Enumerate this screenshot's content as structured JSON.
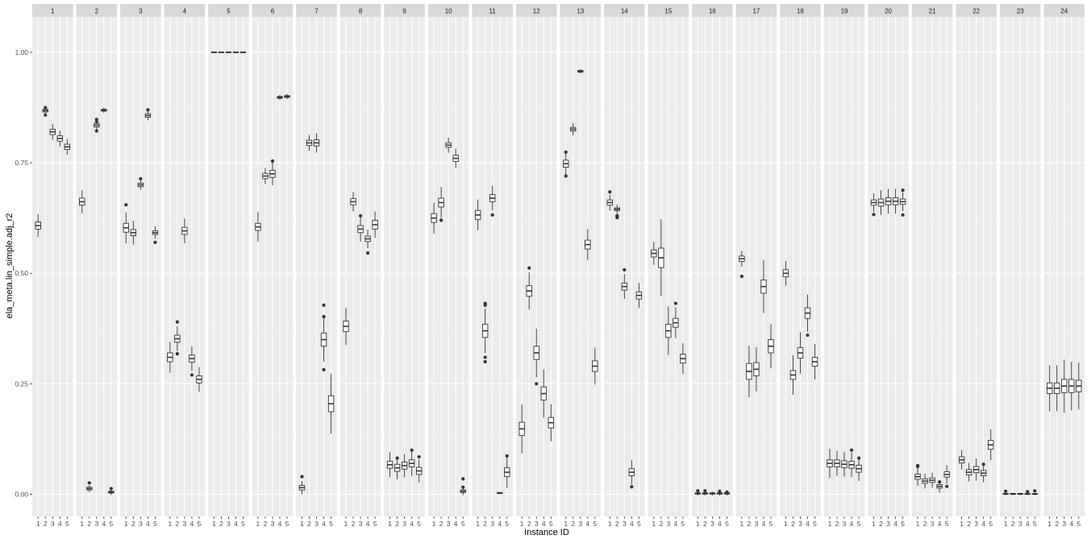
{
  "chart_data": {
    "type": "boxplot",
    "xlabel": "Instance ID",
    "ylabel": "ela_meta.lin_simple.adj_r2",
    "ylim": [
      -0.05,
      1.08
    ],
    "y_ticks": [
      0.0,
      0.25,
      0.5,
      0.75,
      1.0
    ],
    "y_tick_labels": [
      "0.00",
      "0.25",
      "0.50",
      "0.75",
      "1.00"
    ],
    "x_categories": [
      "1",
      "2",
      "3",
      "4",
      "5"
    ],
    "grid": true,
    "colors": {
      "panel_bg": "#ebebeb",
      "strip_bg": "#d9d9d9",
      "grid_major": "#ffffff",
      "box_fill": "#ffffff",
      "box_line": "#333333",
      "outlier": "#333333"
    },
    "facets": [
      {
        "label": "1",
        "boxes": [
          [
            0.608,
            0.008,
            0.018,
            []
          ],
          [
            0.868,
            0.003,
            0.005,
            [
              0.875,
              0.858
            ]
          ],
          [
            0.82,
            0.006,
            0.012,
            []
          ],
          [
            0.805,
            0.006,
            0.012,
            []
          ],
          [
            0.786,
            0.006,
            0.012,
            []
          ]
        ]
      },
      {
        "label": "2",
        "boxes": [
          [
            0.662,
            0.008,
            0.018,
            []
          ],
          [
            0.013,
            0.003,
            0.005,
            [
              0.026
            ]
          ],
          [
            0.835,
            0.004,
            0.007,
            [
              0.848,
              0.843,
              0.822
            ]
          ],
          [
            0.869,
            0.002,
            0.004,
            []
          ],
          [
            0.005,
            0.002,
            0.004,
            [
              0.013
            ]
          ]
        ]
      },
      {
        "label": "3",
        "boxes": [
          [
            0.603,
            0.01,
            0.025,
            [
              0.655
            ]
          ],
          [
            0.592,
            0.007,
            0.02,
            []
          ],
          [
            0.7,
            0.004,
            0.007,
            [
              0.714
            ]
          ],
          [
            0.857,
            0.004,
            0.007,
            [
              0.87
            ]
          ],
          [
            0.592,
            0.004,
            0.01,
            [
              0.57
            ]
          ]
        ]
      },
      {
        "label": "4",
        "boxes": [
          [
            0.31,
            0.01,
            0.025,
            []
          ],
          [
            0.352,
            0.008,
            0.02,
            [
              0.39,
              0.318
            ]
          ],
          [
            0.596,
            0.008,
            0.02,
            []
          ],
          [
            0.307,
            0.008,
            0.02,
            [
              0.27
            ]
          ],
          [
            0.26,
            0.008,
            0.02,
            []
          ]
        ]
      },
      {
        "label": "5",
        "boxes": [
          [
            1.0,
            0.0007,
            0.001,
            []
          ],
          [
            1.0,
            0.0007,
            0.001,
            []
          ],
          [
            1.0,
            0.0007,
            0.001,
            []
          ],
          [
            1.0,
            0.0007,
            0.001,
            []
          ],
          [
            1.0,
            0.0007,
            0.001,
            []
          ]
        ]
      },
      {
        "label": "6",
        "boxes": [
          [
            0.605,
            0.008,
            0.025,
            []
          ],
          [
            0.72,
            0.006,
            0.012,
            []
          ],
          [
            0.725,
            0.008,
            0.018,
            [
              0.754
            ]
          ],
          [
            0.898,
            0.002,
            0.004,
            []
          ],
          [
            0.9,
            0.002,
            0.004,
            []
          ]
        ]
      },
      {
        "label": "7",
        "boxes": [
          [
            0.015,
            0.005,
            0.01,
            [
              0.04
            ]
          ],
          [
            0.795,
            0.006,
            0.012,
            []
          ],
          [
            0.795,
            0.007,
            0.015,
            []
          ],
          [
            0.35,
            0.015,
            0.035,
            [
              0.428,
              0.402,
              0.282
            ]
          ],
          [
            0.205,
            0.018,
            0.05,
            []
          ]
        ]
      },
      {
        "label": "8",
        "boxes": [
          [
            0.38,
            0.012,
            0.03,
            []
          ],
          [
            0.662,
            0.007,
            0.015,
            []
          ],
          [
            0.6,
            0.008,
            0.02,
            [
              0.63
            ]
          ],
          [
            0.578,
            0.006,
            0.015,
            [
              0.546
            ]
          ],
          [
            0.61,
            0.01,
            0.02,
            []
          ]
        ]
      },
      {
        "label": "9",
        "boxes": [
          [
            0.067,
            0.008,
            0.02,
            []
          ],
          [
            0.06,
            0.008,
            0.018,
            [
              0.082
            ]
          ],
          [
            0.065,
            0.008,
            0.018,
            []
          ],
          [
            0.07,
            0.008,
            0.02,
            [
              0.1
            ]
          ],
          [
            0.053,
            0.008,
            0.018,
            [
              0.085
            ]
          ]
        ]
      },
      {
        "label": "10",
        "boxes": [
          [
            0.625,
            0.01,
            0.025,
            []
          ],
          [
            0.66,
            0.01,
            0.025,
            [
              0.62
            ]
          ],
          [
            0.79,
            0.005,
            0.012,
            []
          ],
          [
            0.76,
            0.007,
            0.015,
            []
          ],
          [
            0.007,
            0.003,
            0.006,
            [
              0.035,
              0.016
            ]
          ]
        ]
      },
      {
        "label": "11",
        "boxes": [
          [
            0.632,
            0.01,
            0.025,
            []
          ],
          [
            0.37,
            0.015,
            0.035,
            [
              0.432,
              0.428,
              0.31,
              0.3
            ]
          ],
          [
            0.67,
            0.008,
            0.02,
            [
              0.632
            ]
          ],
          [
            0.003,
            0.001,
            0.002,
            []
          ],
          [
            0.05,
            0.01,
            0.025,
            [
              0.087
            ]
          ]
        ]
      },
      {
        "label": "12",
        "boxes": [
          [
            0.148,
            0.015,
            0.04,
            []
          ],
          [
            0.46,
            0.012,
            0.03,
            [
              0.512
            ]
          ],
          [
            0.32,
            0.015,
            0.04,
            [
              0.25
            ]
          ],
          [
            0.228,
            0.015,
            0.04,
            []
          ],
          [
            0.162,
            0.012,
            0.03,
            []
          ]
        ]
      },
      {
        "label": "13",
        "boxes": [
          [
            0.748,
            0.008,
            0.02,
            [
              0.774,
              0.72
            ]
          ],
          [
            0.826,
            0.004,
            0.01,
            []
          ],
          [
            0.957,
            0.002,
            0.003,
            []
          ],
          [
            0.565,
            0.01,
            0.025,
            []
          ],
          [
            0.29,
            0.012,
            0.03,
            []
          ]
        ]
      },
      {
        "label": "14",
        "boxes": [
          [
            0.66,
            0.006,
            0.012,
            [
              0.684
            ]
          ],
          [
            0.645,
            0.003,
            0.008,
            [
              0.63,
              0.628,
              0.626
            ]
          ],
          [
            0.47,
            0.008,
            0.02,
            [
              0.508
            ]
          ],
          [
            0.05,
            0.008,
            0.02,
            [
              0.017
            ]
          ],
          [
            0.45,
            0.008,
            0.02,
            []
          ]
        ]
      },
      {
        "label": "15",
        "boxes": [
          [
            0.545,
            0.008,
            0.018,
            []
          ],
          [
            0.535,
            0.022,
            0.065,
            []
          ],
          [
            0.37,
            0.015,
            0.04,
            []
          ],
          [
            0.388,
            0.01,
            0.025,
            [
              0.432
            ]
          ],
          [
            0.307,
            0.01,
            0.025,
            []
          ]
        ]
      },
      {
        "label": "16",
        "boxes": [
          [
            0.002,
            0.0015,
            0.003,
            [
              0.008
            ]
          ],
          [
            0.002,
            0.0015,
            0.003,
            [
              0.008
            ]
          ],
          [
            0.002,
            0.0015,
            0.003,
            []
          ],
          [
            0.002,
            0.0015,
            0.003,
            [
              0.007
            ]
          ],
          [
            0.002,
            0.0015,
            0.003,
            [
              0.005
            ]
          ]
        ]
      },
      {
        "label": "17",
        "boxes": [
          [
            0.533,
            0.006,
            0.012,
            [
              0.493
            ]
          ],
          [
            0.278,
            0.018,
            0.04,
            []
          ],
          [
            0.283,
            0.015,
            0.035,
            []
          ],
          [
            0.47,
            0.015,
            0.045,
            []
          ],
          [
            0.335,
            0.015,
            0.035,
            []
          ]
        ]
      },
      {
        "label": "18",
        "boxes": [
          [
            0.5,
            0.008,
            0.02,
            []
          ],
          [
            0.27,
            0.01,
            0.035,
            []
          ],
          [
            0.32,
            0.012,
            0.035,
            []
          ],
          [
            0.41,
            0.012,
            0.03,
            [
              0.36
            ]
          ],
          [
            0.3,
            0.01,
            0.03,
            []
          ]
        ]
      },
      {
        "label": "19",
        "boxes": [
          [
            0.07,
            0.008,
            0.025,
            []
          ],
          [
            0.07,
            0.008,
            0.02,
            []
          ],
          [
            0.068,
            0.008,
            0.02,
            []
          ],
          [
            0.067,
            0.008,
            0.02,
            [
              0.1
            ]
          ],
          [
            0.058,
            0.008,
            0.02,
            [
              0.082
            ]
          ]
        ]
      },
      {
        "label": "20",
        "boxes": [
          [
            0.66,
            0.006,
            0.015,
            [
              0.633
            ]
          ],
          [
            0.66,
            0.008,
            0.02,
            []
          ],
          [
            0.663,
            0.008,
            0.02,
            []
          ],
          [
            0.663,
            0.008,
            0.02,
            []
          ],
          [
            0.662,
            0.006,
            0.015,
            [
              0.688,
              0.632
            ]
          ]
        ]
      },
      {
        "label": "21",
        "boxes": [
          [
            0.04,
            0.006,
            0.015,
            [
              0.065,
              0.063
            ]
          ],
          [
            0.03,
            0.005,
            0.012,
            []
          ],
          [
            0.032,
            0.005,
            0.012,
            []
          ],
          [
            0.018,
            0.004,
            0.01,
            [
              0.028
            ]
          ],
          [
            0.045,
            0.006,
            0.015,
            [
              0.018
            ]
          ]
        ]
      },
      {
        "label": "22",
        "boxes": [
          [
            0.078,
            0.007,
            0.015,
            []
          ],
          [
            0.05,
            0.006,
            0.015,
            []
          ],
          [
            0.056,
            0.007,
            0.018,
            []
          ],
          [
            0.048,
            0.006,
            0.015,
            [
              0.068
            ]
          ],
          [
            0.112,
            0.01,
            0.025,
            []
          ]
        ]
      },
      {
        "label": "23",
        "boxes": [
          [
            0.001,
            0.001,
            0.002,
            [
              0.007
            ]
          ],
          [
            0.001,
            0.001,
            0.002,
            []
          ],
          [
            0.001,
            0.001,
            0.002,
            []
          ],
          [
            0.001,
            0.001,
            0.002,
            [
              0.006
            ]
          ],
          [
            0.001,
            0.001,
            0.002,
            [
              0.008
            ]
          ]
        ]
      },
      {
        "label": "24",
        "boxes": [
          [
            0.24,
            0.012,
            0.04,
            []
          ],
          [
            0.24,
            0.012,
            0.04,
            []
          ],
          [
            0.245,
            0.015,
            0.045,
            []
          ],
          [
            0.245,
            0.015,
            0.04,
            []
          ],
          [
            0.245,
            0.013,
            0.04,
            []
          ]
        ]
      }
    ]
  }
}
